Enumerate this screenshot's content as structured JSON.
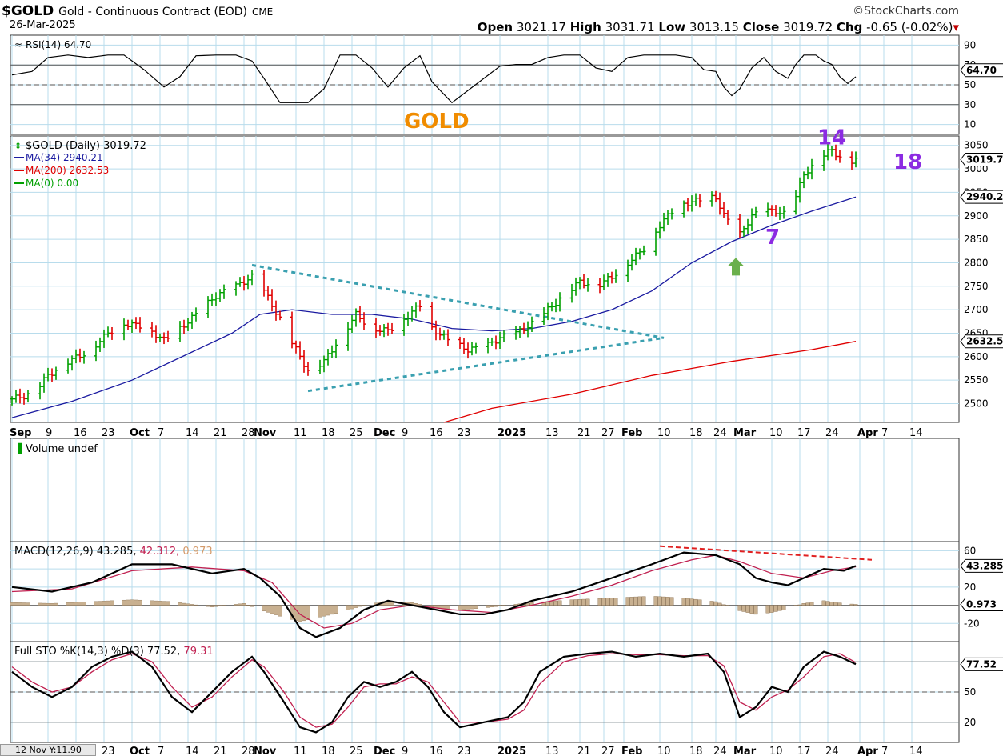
{
  "header": {
    "symbol": "$GOLD",
    "title": "Gold - Continuous Contract (EOD)",
    "exchange": "CME",
    "date": "26-Mar-2025",
    "brand": "©StockCharts.com",
    "ohlc": {
      "open_label": "Open",
      "open": "3021.17",
      "high_label": "High",
      "high": "3031.71",
      "low_label": "Low",
      "low": "3013.15",
      "close_label": "Close",
      "close": "3019.72",
      "chg_label": "Chg",
      "chg": "-0.65 (-0.02%)"
    }
  },
  "tooltip": "12 Nov Y:11.90",
  "colors": {
    "up": "#00a000",
    "down": "#e00000",
    "ma34": "#1a1aa0",
    "ma200": "#e00000",
    "trend": "#3aa0b0",
    "purple": "#8b2be2",
    "orange": "#f08c00",
    "grid": "#b8dcec"
  },
  "chart_data": [
    {
      "type": "line",
      "title": "RSI(14) 64.70",
      "ylim": [
        0,
        100
      ],
      "yticks": [
        10,
        30,
        50,
        70,
        90
      ],
      "reference_lines": [
        30,
        50,
        70
      ],
      "last_value_label": "64.70",
      "annotation": "GOLD"
    },
    {
      "type": "bar",
      "title": "$GOLD (Daily) 3019.72",
      "legend": [
        {
          "name": "MA(34) 2940.21",
          "color": "#1a1aa0"
        },
        {
          "name": "MA(200) 2632.53",
          "color": "#e00000"
        },
        {
          "name": "MA(0) 0.00",
          "color": "#00a000"
        }
      ],
      "ylim": [
        2460,
        3070
      ],
      "yticks": [
        2500,
        2550,
        2600,
        2650,
        2700,
        2750,
        2800,
        2850,
        2900,
        2950,
        3000,
        3050
      ],
      "price_labels": [
        "3019.72",
        "2940.21",
        "2632.53"
      ],
      "xticks": [
        {
          "d": 0,
          "l": "Sep"
        },
        {
          "d": 9,
          "l": "9"
        },
        {
          "d": 16,
          "l": "16"
        },
        {
          "d": 23,
          "l": "23"
        },
        {
          "d": 30,
          "l": "Oct"
        },
        {
          "d": 37,
          "l": "7"
        },
        {
          "d": 44,
          "l": "14"
        },
        {
          "d": 51,
          "l": "21"
        },
        {
          "d": 58,
          "l": "28"
        },
        {
          "d": 61,
          "l": "Nov"
        },
        {
          "d": 71,
          "l": "11"
        },
        {
          "d": 78,
          "l": "18"
        },
        {
          "d": 85,
          "l": "25"
        },
        {
          "d": 91,
          "l": "Dec"
        },
        {
          "d": 98,
          "l": "9"
        },
        {
          "d": 105,
          "l": "16"
        },
        {
          "d": 112,
          "l": "23"
        },
        {
          "d": 122,
          "l": "2025"
        },
        {
          "d": 134,
          "l": "13"
        },
        {
          "d": 142,
          "l": "21"
        },
        {
          "d": 148,
          "l": "27"
        },
        {
          "d": 153,
          "l": "Feb"
        },
        {
          "d": 162,
          "l": "10"
        },
        {
          "d": 170,
          "l": "18"
        },
        {
          "d": 176,
          "l": "24"
        },
        {
          "d": 181,
          "l": "Mar"
        },
        {
          "d": 190,
          "l": "10"
        },
        {
          "d": 197,
          "l": "17"
        },
        {
          "d": 204,
          "l": "24"
        },
        {
          "d": 212,
          "l": "Apr"
        },
        {
          "d": 218,
          "l": "7"
        },
        {
          "d": 225,
          "l": "14"
        }
      ],
      "close_path": [
        [
          0,
          2510
        ],
        [
          5,
          2520
        ],
        [
          9,
          2560
        ],
        [
          14,
          2590
        ],
        [
          19,
          2610
        ],
        [
          24,
          2650
        ],
        [
          28,
          2670
        ],
        [
          33,
          2665
        ],
        [
          38,
          2635
        ],
        [
          42,
          2660
        ],
        [
          46,
          2690
        ],
        [
          51,
          2730
        ],
        [
          56,
          2750
        ],
        [
          60,
          2770
        ],
        [
          63,
          2740
        ],
        [
          67,
          2680
        ],
        [
          70,
          2630
        ],
        [
          74,
          2570
        ],
        [
          78,
          2590
        ],
        [
          82,
          2640
        ],
        [
          86,
          2690
        ],
        [
          90,
          2660
        ],
        [
          94,
          2655
        ],
        [
          98,
          2680
        ],
        [
          102,
          2710
        ],
        [
          105,
          2660
        ],
        [
          110,
          2630
        ],
        [
          114,
          2615
        ],
        [
          118,
          2620
        ],
        [
          122,
          2640
        ],
        [
          126,
          2650
        ],
        [
          130,
          2670
        ],
        [
          134,
          2700
        ],
        [
          138,
          2730
        ],
        [
          142,
          2760
        ],
        [
          146,
          2750
        ],
        [
          150,
          2770
        ],
        [
          154,
          2800
        ],
        [
          158,
          2830
        ],
        [
          162,
          2880
        ],
        [
          166,
          2920
        ],
        [
          170,
          2930
        ],
        [
          173,
          2935
        ],
        [
          176,
          2940
        ],
        [
          178,
          2900
        ],
        [
          180,
          2880
        ],
        [
          182,
          2860
        ],
        [
          185,
          2900
        ],
        [
          188,
          2910
        ],
        [
          191,
          2910
        ],
        [
          194,
          2900
        ],
        [
          196,
          2940
        ],
        [
          198,
          2990
        ],
        [
          201,
          3010
        ],
        [
          203,
          3030
        ],
        [
          205,
          3040
        ],
        [
          207,
          3025
        ],
        [
          209,
          3015
        ],
        [
          211,
          3019.72
        ]
      ],
      "ma34_path": [
        [
          0,
          2470
        ],
        [
          15,
          2505
        ],
        [
          30,
          2550
        ],
        [
          45,
          2610
        ],
        [
          55,
          2650
        ],
        [
          62,
          2690
        ],
        [
          70,
          2700
        ],
        [
          80,
          2690
        ],
        [
          90,
          2690
        ],
        [
          100,
          2680
        ],
        [
          110,
          2660
        ],
        [
          120,
          2655
        ],
        [
          130,
          2660
        ],
        [
          140,
          2675
        ],
        [
          150,
          2700
        ],
        [
          160,
          2740
        ],
        [
          170,
          2800
        ],
        [
          180,
          2845
        ],
        [
          190,
          2880
        ],
        [
          200,
          2910
        ],
        [
          211,
          2940.21
        ]
      ],
      "ma200_path": [
        [
          108,
          2460
        ],
        [
          120,
          2490
        ],
        [
          140,
          2520
        ],
        [
          160,
          2560
        ],
        [
          180,
          2590
        ],
        [
          200,
          2615
        ],
        [
          211,
          2632.53
        ]
      ],
      "annotations": [
        {
          "text": "14",
          "d": 203,
          "v": 3052
        },
        {
          "text": "18",
          "d": 222,
          "v": 3000
        },
        {
          "text": "7",
          "d": 190,
          "v": 2840
        }
      ],
      "triangle": {
        "upper": [
          [
            60,
            2795
          ],
          [
            163,
            2640
          ]
        ],
        "lower": [
          [
            74,
            2527
          ],
          [
            163,
            2640
          ]
        ]
      },
      "arrow_at": {
        "d": 181,
        "v": 2790
      }
    },
    {
      "type": "bar",
      "title": "Volume undef",
      "series": []
    },
    {
      "type": "line",
      "title": "MACD(12,26,9) 43.285, 42.312, 0.973",
      "title_parts": [
        "MACD(12,26,9) 43.285",
        "42.312",
        "0.973"
      ],
      "ylim": [
        -40,
        70
      ],
      "yticks": [
        -20,
        0,
        20,
        40,
        60
      ],
      "last_value_labels": [
        "43.285",
        "0.973"
      ],
      "macd_path": [
        [
          0,
          20
        ],
        [
          10,
          15
        ],
        [
          20,
          25
        ],
        [
          30,
          45
        ],
        [
          40,
          45
        ],
        [
          50,
          35
        ],
        [
          58,
          40
        ],
        [
          62,
          30
        ],
        [
          67,
          10
        ],
        [
          72,
          -25
        ],
        [
          76,
          -35
        ],
        [
          82,
          -25
        ],
        [
          88,
          -5
        ],
        [
          94,
          5
        ],
        [
          100,
          0
        ],
        [
          106,
          -5
        ],
        [
          112,
          -10
        ],
        [
          118,
          -10
        ],
        [
          124,
          -5
        ],
        [
          130,
          5
        ],
        [
          140,
          15
        ],
        [
          150,
          30
        ],
        [
          160,
          45
        ],
        [
          168,
          58
        ],
        [
          176,
          55
        ],
        [
          182,
          45
        ],
        [
          186,
          30
        ],
        [
          190,
          25
        ],
        [
          194,
          22
        ],
        [
          198,
          30
        ],
        [
          203,
          40
        ],
        [
          208,
          38
        ],
        [
          211,
          43.285
        ]
      ],
      "signal_path": [
        [
          0,
          15
        ],
        [
          15,
          18
        ],
        [
          30,
          38
        ],
        [
          45,
          42
        ],
        [
          58,
          38
        ],
        [
          65,
          25
        ],
        [
          72,
          -10
        ],
        [
          78,
          -25
        ],
        [
          85,
          -20
        ],
        [
          92,
          -5
        ],
        [
          100,
          0
        ],
        [
          110,
          -5
        ],
        [
          120,
          -8
        ],
        [
          130,
          0
        ],
        [
          140,
          10
        ],
        [
          150,
          22
        ],
        [
          160,
          38
        ],
        [
          170,
          50
        ],
        [
          176,
          55
        ],
        [
          182,
          48
        ],
        [
          190,
          35
        ],
        [
          198,
          30
        ],
        [
          205,
          38
        ],
        [
          211,
          42.312
        ]
      ],
      "histogram": [
        [
          0,
          3
        ],
        [
          10,
          2
        ],
        [
          20,
          4
        ],
        [
          30,
          6
        ],
        [
          40,
          4
        ],
        [
          50,
          -2
        ],
        [
          58,
          2
        ],
        [
          62,
          -5
        ],
        [
          67,
          -12
        ],
        [
          72,
          -18
        ],
        [
          76,
          -14
        ],
        [
          82,
          -8
        ],
        [
          88,
          0
        ],
        [
          94,
          5
        ],
        [
          100,
          3
        ],
        [
          106,
          -3
        ],
        [
          112,
          -5
        ],
        [
          118,
          -3
        ],
        [
          124,
          0
        ],
        [
          130,
          3
        ],
        [
          140,
          6
        ],
        [
          150,
          8
        ],
        [
          160,
          10
        ],
        [
          168,
          8
        ],
        [
          176,
          4
        ],
        [
          182,
          -6
        ],
        [
          186,
          -10
        ],
        [
          190,
          -8
        ],
        [
          194,
          -4
        ],
        [
          198,
          2
        ],
        [
          203,
          5
        ],
        [
          208,
          2
        ],
        [
          211,
          0.973
        ]
      ],
      "divergence_line": [
        [
          162,
          65
        ],
        [
          215,
          50
        ]
      ]
    },
    {
      "type": "line",
      "title": "Full STO %K(14,3) %D(3) 77.52, 79.31",
      "title_parts": [
        "Full STO %K(14,3) %D(3) 77.52",
        "79.31"
      ],
      "ylim": [
        0,
        100
      ],
      "yticks": [
        20,
        50,
        80
      ],
      "reference_lines": [
        20,
        50,
        80
      ],
      "last_value_label": "77.52",
      "k_path": [
        [
          0,
          70
        ],
        [
          5,
          55
        ],
        [
          10,
          45
        ],
        [
          15,
          55
        ],
        [
          20,
          75
        ],
        [
          25,
          85
        ],
        [
          30,
          90
        ],
        [
          35,
          75
        ],
        [
          40,
          45
        ],
        [
          45,
          30
        ],
        [
          50,
          50
        ],
        [
          55,
          70
        ],
        [
          60,
          85
        ],
        [
          63,
          70
        ],
        [
          68,
          40
        ],
        [
          72,
          15
        ],
        [
          76,
          10
        ],
        [
          80,
          20
        ],
        [
          84,
          45
        ],
        [
          88,
          60
        ],
        [
          92,
          55
        ],
        [
          96,
          60
        ],
        [
          100,
          70
        ],
        [
          104,
          55
        ],
        [
          108,
          30
        ],
        [
          112,
          15
        ],
        [
          118,
          20
        ],
        [
          124,
          25
        ],
        [
          128,
          40
        ],
        [
          132,
          70
        ],
        [
          138,
          85
        ],
        [
          144,
          88
        ],
        [
          150,
          90
        ],
        [
          156,
          85
        ],
        [
          162,
          88
        ],
        [
          168,
          85
        ],
        [
          174,
          88
        ],
        [
          178,
          70
        ],
        [
          182,
          25
        ],
        [
          186,
          35
        ],
        [
          190,
          55
        ],
        [
          194,
          50
        ],
        [
          198,
          75
        ],
        [
          203,
          90
        ],
        [
          207,
          85
        ],
        [
          211,
          77.52
        ]
      ],
      "d_path": [
        [
          0,
          75
        ],
        [
          5,
          60
        ],
        [
          10,
          50
        ],
        [
          15,
          55
        ],
        [
          20,
          70
        ],
        [
          25,
          82
        ],
        [
          30,
          88
        ],
        [
          35,
          80
        ],
        [
          40,
          55
        ],
        [
          45,
          35
        ],
        [
          50,
          45
        ],
        [
          55,
          65
        ],
        [
          60,
          82
        ],
        [
          63,
          75
        ],
        [
          68,
          50
        ],
        [
          72,
          25
        ],
        [
          76,
          15
        ],
        [
          80,
          18
        ],
        [
          84,
          35
        ],
        [
          88,
          55
        ],
        [
          92,
          58
        ],
        [
          96,
          58
        ],
        [
          100,
          65
        ],
        [
          104,
          60
        ],
        [
          108,
          40
        ],
        [
          112,
          20
        ],
        [
          118,
          20
        ],
        [
          124,
          23
        ],
        [
          128,
          32
        ],
        [
          132,
          58
        ],
        [
          138,
          80
        ],
        [
          144,
          86
        ],
        [
          150,
          88
        ],
        [
          156,
          87
        ],
        [
          162,
          87
        ],
        [
          168,
          86
        ],
        [
          174,
          86
        ],
        [
          178,
          76
        ],
        [
          182,
          40
        ],
        [
          186,
          32
        ],
        [
          190,
          45
        ],
        [
          194,
          52
        ],
        [
          198,
          65
        ],
        [
          203,
          85
        ],
        [
          207,
          88
        ],
        [
          211,
          79.31
        ]
      ]
    }
  ]
}
